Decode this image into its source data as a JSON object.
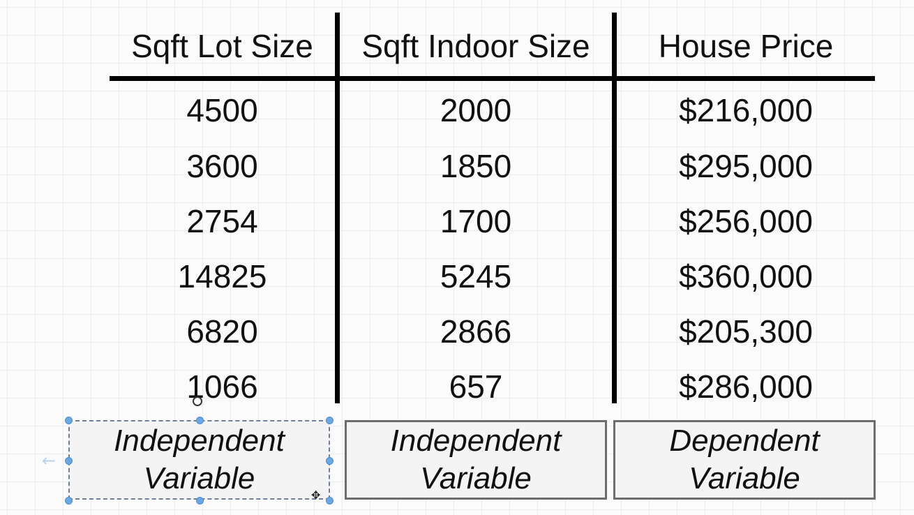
{
  "table": {
    "headers": [
      "Sqft Lot Size",
      "Sqft Indoor Size",
      "House Price"
    ],
    "rows": [
      [
        "4500",
        "2000",
        "$216,000"
      ],
      [
        "3600",
        "1850",
        "$295,000"
      ],
      [
        "2754",
        "1700",
        "$256,000"
      ],
      [
        "14825",
        "5245",
        "$360,000"
      ],
      [
        "6820",
        "2866",
        "$205,300"
      ],
      [
        "1066",
        "657",
        "$286,000"
      ]
    ]
  },
  "labels": [
    {
      "line1": "Independent",
      "line2": "Variable"
    },
    {
      "line1": "Independent",
      "line2": "Variable"
    },
    {
      "line1": "Dependent",
      "line2": "Variable"
    }
  ],
  "icons": {
    "cursor": "rotate-cursor-icon",
    "move": "move-cursor-icon",
    "arrow": "arrow-left-icon"
  },
  "colors": {
    "selection_handle": "#6aa7e3",
    "box_border": "#6d6d6d",
    "box_fill": "#f4f4f4"
  }
}
